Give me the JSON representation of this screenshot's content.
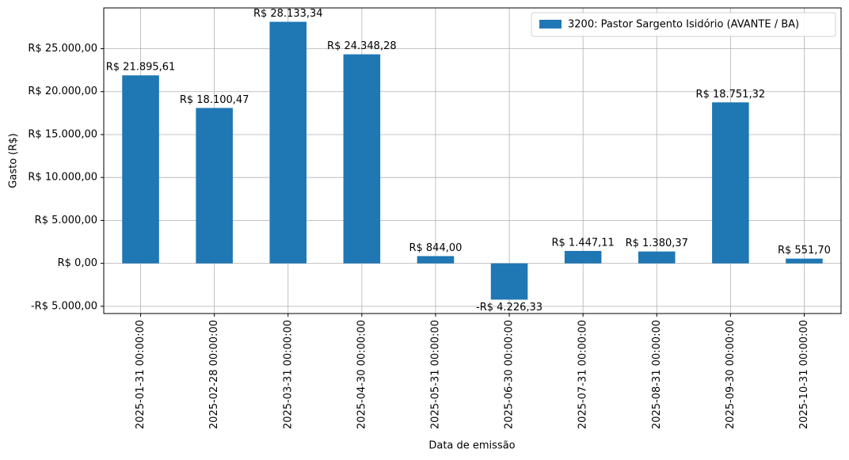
{
  "chart_data": {
    "type": "bar",
    "y_label": "Gasto (R$)",
    "x_label": "Data de emissão",
    "categories": [
      "2025-01-31 00:00:00",
      "2025-02-28 00:00:00",
      "2025-03-31 00:00:00",
      "2025-04-30 00:00:00",
      "2025-05-31 00:00:00",
      "2025-06-30 00:00:00",
      "2025-07-31 00:00:00",
      "2025-08-31 00:00:00",
      "2025-09-30 00:00:00",
      "2025-10-31 00:00:00"
    ],
    "series": [
      {
        "name": "3200: Pastor Sargento Isidório (AVANTE / BA)",
        "color": "#1f77b4",
        "values": [
          21895.61,
          18100.47,
          28133.34,
          24348.28,
          844.0,
          -4226.33,
          1447.11,
          1380.37,
          18751.32,
          551.7
        ],
        "value_labels": [
          "R$ 21.895,61",
          "R$ 18.100,47",
          "R$ 28.133,34",
          "R$ 24.348,28",
          "R$ 844,00",
          "-R$ 4.226,33",
          "R$ 1.447,11",
          "R$ 1.380,37",
          "R$ 18.751,32",
          "R$ 551,70"
        ]
      }
    ],
    "ylim": [
      -5844.31,
      29751.32
    ],
    "yticks": [
      {
        "value": -5000,
        "label": "-R$ 5.000,00"
      },
      {
        "value": 0,
        "label": "R$ 0,00"
      },
      {
        "value": 5000,
        "label": "R$ 5.000,00"
      },
      {
        "value": 10000,
        "label": "R$ 10.000,00"
      },
      {
        "value": 15000,
        "label": "R$ 15.000,00"
      },
      {
        "value": 20000,
        "label": "R$ 20.000,00"
      },
      {
        "value": 25000,
        "label": "R$ 25.000,00"
      }
    ],
    "grid": true,
    "legend": "upper-right"
  }
}
